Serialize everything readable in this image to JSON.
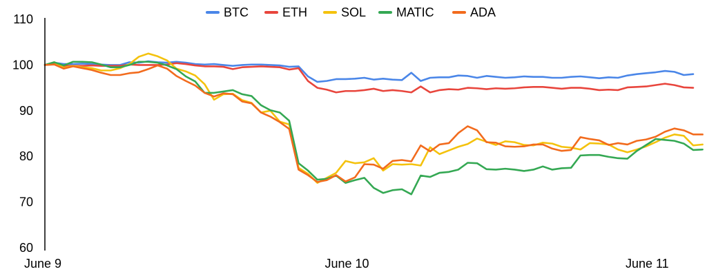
{
  "chart_data": {
    "type": "line",
    "title": "",
    "xlabel": "",
    "ylabel": "",
    "ylim": [
      60,
      110
    ],
    "y_ticks": [
      60,
      70,
      80,
      90,
      100,
      110
    ],
    "x_tick_labels": [
      {
        "label": "June 9",
        "index": 0
      },
      {
        "label": "June 10",
        "index": 32
      },
      {
        "label": "June 11",
        "index": 64
      }
    ],
    "legend_position": "top-center",
    "grid": false,
    "series": [
      {
        "name": "BTC",
        "color": "#4A86E8",
        "values": [
          100,
          100.5,
          100.2,
          100.2,
          100.3,
          100.2,
          100.1,
          100,
          100,
          100.6,
          100.5,
          100.8,
          100.6,
          100.5,
          100.7,
          100.5,
          100.2,
          100.1,
          100.2,
          100,
          99.8,
          100,
          100.1,
          100.1,
          100,
          99.9,
          99.6,
          99.7,
          97.5,
          96.3,
          96.5,
          96.9,
          96.9,
          97,
          97.2,
          96.8,
          97,
          96.8,
          96.7,
          98.3,
          96.5,
          97.2,
          97.3,
          97.3,
          97.7,
          97.6,
          97.2,
          97.6,
          97.4,
          97.2,
          97.3,
          97.5,
          97.4,
          97.4,
          97.2,
          97.2,
          97.4,
          97.5,
          97.3,
          97.1,
          97.3,
          97.2,
          97.7,
          98,
          98.2,
          98.4,
          98.7,
          98.5,
          97.8,
          98
        ]
      },
      {
        "name": "ETH",
        "color": "#E8453C",
        "values": [
          100,
          100.3,
          99.8,
          99.8,
          99.8,
          99.9,
          99.8,
          99.8,
          99.8,
          100.1,
          100,
          100,
          100,
          100.1,
          100.4,
          100.2,
          99.9,
          99.7,
          99.7,
          99.6,
          99.1,
          99.5,
          99.6,
          99.7,
          99.6,
          99.5,
          99,
          99.3,
          96.5,
          95,
          94.6,
          94,
          94.3,
          94.3,
          94.5,
          94.8,
          94.3,
          94.5,
          94.3,
          94,
          95.3,
          94,
          94.5,
          94.7,
          94.6,
          95,
          94.9,
          94.7,
          94.9,
          94.8,
          94.9,
          95.1,
          95.2,
          95.2,
          95,
          94.8,
          95,
          95,
          94.8,
          94.5,
          94.6,
          94.5,
          95.1,
          95.2,
          95.3,
          95.6,
          95.9,
          95.6,
          95.1,
          95
        ]
      },
      {
        "name": "SOL",
        "color": "#F4C20D",
        "values": [
          100,
          100.6,
          99.4,
          99.8,
          99.5,
          99.3,
          98.8,
          98.8,
          99.3,
          100.2,
          101.8,
          102.5,
          101.9,
          101,
          99.2,
          98.6,
          97.7,
          95.8,
          92.4,
          93.6,
          93.7,
          92.3,
          91.7,
          89.6,
          90,
          87.6,
          87,
          77.5,
          76.2,
          74.2,
          75.3,
          76.4,
          79,
          78.5,
          78.7,
          79.6,
          76.9,
          78.3,
          78.2,
          78.3,
          78,
          82,
          80.5,
          81.3,
          82.1,
          82.7,
          83.9,
          83.2,
          82.5,
          83.3,
          83.1,
          82.5,
          82.4,
          83,
          82.8,
          82.1,
          81.9,
          81.5,
          82.9,
          82.8,
          82.6,
          81.5,
          80.9,
          81.5,
          82.2,
          83.1,
          84.1,
          84.8,
          84.5,
          82.4,
          82.6
        ]
      },
      {
        "name": "MATIC",
        "color": "#34A853",
        "values": [
          100,
          100.6,
          99.9,
          100.7,
          100.7,
          100.6,
          100.1,
          99.5,
          99.5,
          100,
          100.7,
          100.7,
          100.5,
          99.9,
          99.1,
          97.5,
          96.4,
          93.9,
          93.9,
          94.2,
          94.5,
          93.6,
          93.2,
          91.2,
          90.1,
          89.6,
          87.8,
          78.5,
          76.9,
          74.9,
          75.1,
          75.8,
          74.2,
          74.8,
          75.3,
          73.1,
          72,
          72.6,
          72.8,
          71.7,
          75.8,
          75.5,
          76.4,
          76.6,
          77.1,
          78.6,
          78.5,
          77.2,
          77.1,
          77.3,
          77.1,
          76.8,
          77.1,
          77.8,
          77.1,
          77.4,
          77.5,
          80.2,
          80.3,
          80.3,
          79.9,
          79.6,
          79.5,
          81.2,
          82.5,
          83.8,
          83.6,
          83.4,
          82.8,
          81.4,
          81.5
        ]
      },
      {
        "name": "ADA",
        "color": "#F26B1D",
        "values": [
          100,
          100.1,
          99.2,
          99.7,
          99.3,
          98.9,
          98.3,
          97.8,
          97.8,
          98.2,
          98.4,
          99.1,
          99.9,
          99.2,
          97.6,
          96.5,
          95.5,
          93.9,
          93.1,
          93.8,
          93.6,
          92,
          91.6,
          89.6,
          88.7,
          87.5,
          86,
          77.1,
          75.9,
          74.4,
          74.8,
          75.9,
          74.5,
          75.4,
          78.3,
          78.2,
          77.3,
          79,
          79.2,
          78.9,
          82.4,
          81.1,
          82.6,
          82.9,
          85.1,
          86.6,
          85.7,
          83.1,
          83,
          82.2,
          82.1,
          82.2,
          82.6,
          82.6,
          81.7,
          81.2,
          81.4,
          84.2,
          83.8,
          83.5,
          82.5,
          82.9,
          82.6,
          83.4,
          83.7,
          84.3,
          85.4,
          86.1,
          85.7,
          84.8,
          84.8
        ]
      }
    ]
  }
}
